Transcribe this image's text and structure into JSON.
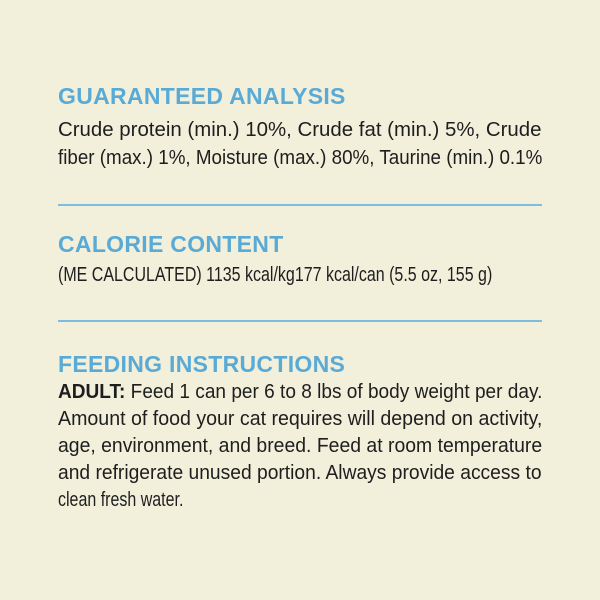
{
  "sections": [
    {
      "title": "GUARANTEED ANALYSIS",
      "lines": [
        "Crude protein (min.) 10%, Crude fat (min.) 5%, Crude",
        "fiber (max.) 1%, Moisture (max.) 80%, Taurine (min.) 0.1%"
      ]
    },
    {
      "title": "CALORIE CONTENT",
      "lines": [
        "(ME CALCULATED) 1135 kcal/kg177 kcal/can (5.5 oz, 155 g)"
      ]
    },
    {
      "title": "FEEDING INSTRUCTIONS",
      "lead": "ADULT:",
      "lines": [
        " Feed 1 can per 6 to 8 lbs of body weight per day.",
        "Amount of food your cat requires will depend on activity,",
        "age, environment, and breed. Feed at room temperature",
        "and refrigerate unused portion. Always provide access to",
        "clean fresh water."
      ]
    }
  ],
  "colors": {
    "background": "#f2efdb",
    "heading": "#5aaad6",
    "divider": "#7cbde0",
    "text": "#1e1e1e"
  }
}
